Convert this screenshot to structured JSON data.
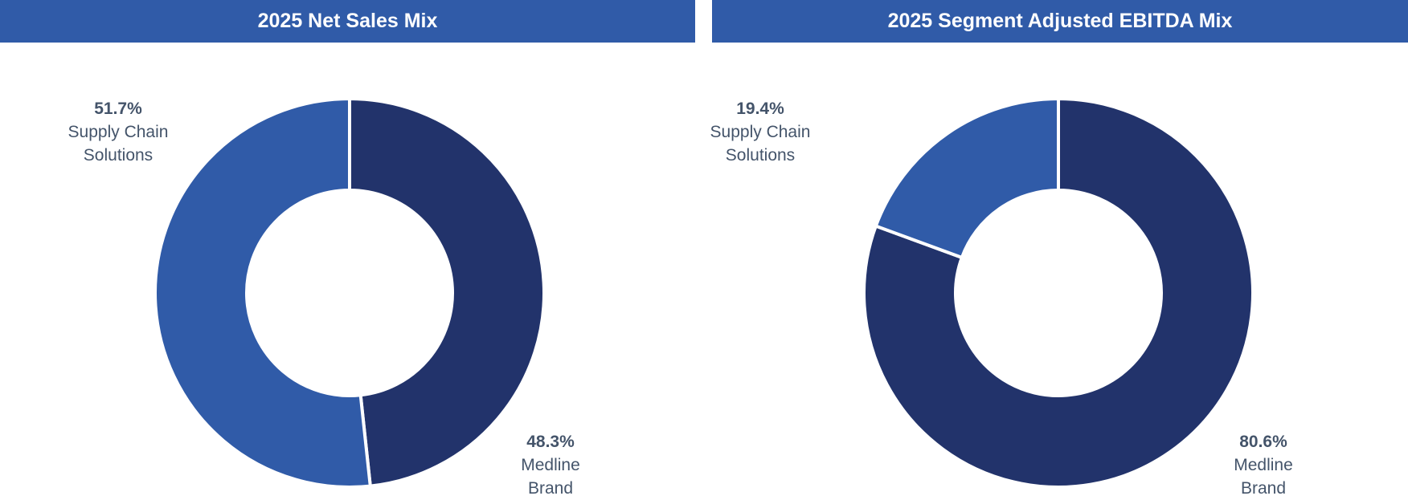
{
  "colors": {
    "header_bg": "#305ba8",
    "dark_navy": "#22336b",
    "medium_blue": "#305ba8",
    "label_text": "#44546a",
    "separator": "#ffffff"
  },
  "chart_data": [
    {
      "type": "pie",
      "style": "donut",
      "title": "2025 Net Sales Mix",
      "slices": [
        {
          "label_line1": "Medline",
          "label_line2": "Brand",
          "value": 48.3,
          "value_label": "48.3%",
          "color": "#22336b"
        },
        {
          "label_line1": "Supply Chain",
          "label_line2": "Solutions",
          "value": 51.7,
          "value_label": "51.7%",
          "color": "#305ba8"
        }
      ]
    },
    {
      "type": "pie",
      "style": "donut",
      "title": "2025 Segment Adjusted EBITDA Mix",
      "slices": [
        {
          "label_line1": "Medline",
          "label_line2": "Brand",
          "value": 80.6,
          "value_label": "80.6%",
          "color": "#22336b"
        },
        {
          "label_line1": "Supply Chain",
          "label_line2": "Solutions",
          "value": 19.4,
          "value_label": "19.4%",
          "color": "#305ba8"
        }
      ]
    }
  ]
}
